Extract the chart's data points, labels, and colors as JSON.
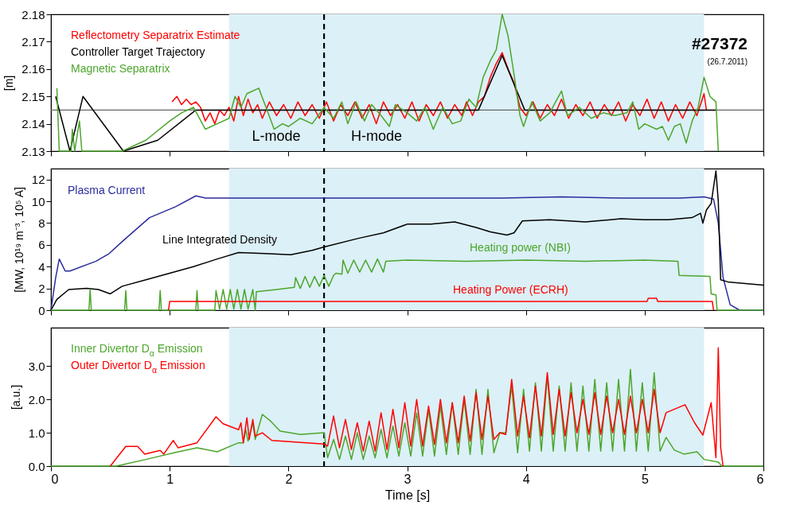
{
  "chart_data": [
    {
      "type": "line",
      "ylabel": "[m]",
      "xlim": [
        0,
        6
      ],
      "xticks": [
        0,
        1,
        2,
        3,
        4,
        5,
        6
      ],
      "ylim": [
        2.13,
        2.18
      ],
      "yticks": [
        2.13,
        2.14,
        2.15,
        2.16,
        2.17,
        2.18
      ],
      "tick_labels": "y",
      "legend": "top left",
      "annotations": [
        "#27372",
        "(26.7.2011)",
        "L-mode",
        "H-mode"
      ],
      "bands": [
        {
          "axis": "x",
          "from": 1.5,
          "to": 5.5,
          "color": "#dcf0f7"
        }
      ],
      "ref_lines": [
        {
          "axis": "y",
          "value": 2.145,
          "color": "#666666"
        },
        {
          "axis": "x",
          "value": 2.3,
          "color": "#000000",
          "line_style": "dashed"
        }
      ],
      "series": [
        {
          "name": "Reflectometry Separatrix Estimate",
          "color": "#ff0000",
          "x": [
            1.02,
            1.06,
            1.1,
            1.14,
            1.18,
            1.22,
            1.26,
            1.3,
            1.34,
            1.38,
            1.42,
            1.46,
            1.5,
            1.54,
            1.58,
            1.62,
            1.66,
            1.7,
            1.74,
            1.78,
            1.84,
            1.9,
            1.96,
            2.02,
            2.08,
            2.14,
            2.2,
            2.26,
            2.32,
            2.38,
            2.44,
            2.5,
            2.56,
            2.62,
            2.68,
            2.74,
            2.8,
            2.86,
            2.92,
            2.98,
            3.04,
            3.1,
            3.16,
            3.22,
            3.28,
            3.34,
            3.4,
            3.46,
            3.5,
            3.55,
            3.6,
            3.65,
            3.7,
            3.75,
            3.8,
            3.85,
            3.9,
            3.95,
            4.0,
            4.06,
            4.12,
            4.18,
            4.24,
            4.3,
            4.36,
            4.42,
            4.48,
            4.54,
            4.6,
            4.66,
            4.72,
            4.78,
            4.84,
            4.9,
            4.96,
            5.02,
            5.08,
            5.14,
            5.2,
            5.26,
            5.32,
            5.38,
            5.44,
            5.5,
            5.52
          ],
          "values": [
            2.148,
            2.15,
            2.147,
            2.149,
            2.147,
            2.148,
            2.146,
            2.141,
            2.144,
            2.14,
            2.145,
            2.143,
            2.146,
            2.141,
            2.15,
            2.143,
            2.149,
            2.144,
            2.147,
            2.142,
            2.148,
            2.143,
            2.147,
            2.142,
            2.148,
            2.143,
            2.147,
            2.142,
            2.148,
            2.141,
            2.147,
            2.143,
            2.148,
            2.142,
            2.147,
            2.14,
            2.148,
            2.143,
            2.147,
            2.142,
            2.148,
            2.141,
            2.147,
            2.143,
            2.148,
            2.142,
            2.147,
            2.143,
            2.148,
            2.143,
            2.148,
            2.15,
            2.157,
            2.162,
            2.166,
            2.16,
            2.155,
            2.146,
            2.143,
            2.148,
            2.142,
            2.147,
            2.143,
            2.149,
            2.142,
            2.147,
            2.143,
            2.148,
            2.142,
            2.147,
            2.143,
            2.148,
            2.141,
            2.147,
            2.143,
            2.149,
            2.142,
            2.148,
            2.141,
            2.147,
            2.142,
            2.148,
            2.143,
            2.151,
            2.145
          ]
        },
        {
          "name": "Controller Target Trajectory",
          "color": "#000000",
          "x": [
            0.04,
            0.16,
            0.27,
            0.61,
            0.9,
            1.22,
            3.6,
            3.8,
            3.99,
            5.6
          ],
          "values": [
            2.15,
            2.13,
            2.15,
            2.13,
            2.134,
            2.145,
            2.145,
            2.165,
            2.145,
            2.145
          ]
        },
        {
          "name": "Magnetic Separatrix",
          "color": "#4ca62c",
          "x": [
            0.05,
            0.07,
            0.17,
            0.18,
            0.2,
            0.24,
            0.26,
            0.6,
            0.8,
            1.0,
            1.1,
            1.2,
            1.25,
            1.3,
            1.4,
            1.5,
            1.55,
            1.6,
            1.65,
            1.75,
            1.82,
            1.88,
            1.95,
            2.0,
            2.1,
            2.2,
            2.3,
            2.38,
            2.45,
            2.5,
            2.57,
            2.64,
            2.7,
            2.78,
            2.85,
            2.9,
            3.0,
            3.08,
            3.15,
            3.22,
            3.3,
            3.38,
            3.45,
            3.52,
            3.58,
            3.64,
            3.7,
            3.75,
            3.8,
            3.85,
            3.9,
            3.95,
            3.98,
            4.05,
            4.12,
            4.2,
            4.3,
            4.35,
            4.45,
            4.55,
            4.65,
            4.75,
            4.85,
            4.9,
            4.95,
            5.0,
            5.1,
            5.15,
            5.2,
            5.25,
            5.3,
            5.35,
            5.4,
            5.45,
            5.5,
            5.55,
            5.6,
            5.62
          ],
          "values": [
            2.153,
            2.13,
            2.13,
            2.138,
            2.13,
            2.141,
            2.13,
            2.13,
            2.134,
            2.141,
            2.144,
            2.146,
            2.142,
            2.138,
            2.14,
            2.142,
            2.15,
            2.146,
            2.151,
            2.153,
            2.145,
            2.138,
            2.14,
            2.139,
            2.142,
            2.14,
            2.146,
            2.142,
            2.148,
            2.14,
            2.148,
            2.141,
            2.147,
            2.143,
            2.139,
            2.147,
            2.144,
            2.141,
            2.146,
            2.138,
            2.146,
            2.14,
            2.141,
            2.149,
            2.146,
            2.157,
            2.163,
            2.167,
            2.18,
            2.172,
            2.158,
            2.143,
            2.139,
            2.148,
            2.141,
            2.144,
            2.152,
            2.143,
            2.146,
            2.142,
            2.144,
            2.143,
            2.144,
            2.148,
            2.138,
            2.14,
            2.138,
            2.139,
            2.134,
            2.139,
            2.14,
            2.133,
            2.141,
            2.146,
            2.157,
            2.15,
            2.148,
            2.13
          ]
        }
      ]
    },
    {
      "type": "line",
      "ylabel": "[MW, 10¹⁹ m⁻³, 10⁵ A]",
      "xlim": [
        0,
        6
      ],
      "xticks": [
        0,
        1,
        2,
        3,
        4,
        5,
        6
      ],
      "ylim": [
        0,
        13
      ],
      "yticks": [
        0,
        2,
        4,
        6,
        8,
        10,
        12
      ],
      "tick_labels": "y",
      "bands": [
        {
          "axis": "x",
          "from": 1.5,
          "to": 5.5,
          "color": "#dcf0f7"
        }
      ],
      "ref_lines": [
        {
          "axis": "x",
          "value": 2.3,
          "color": "#000000",
          "line_style": "dashed"
        }
      ],
      "series": [
        {
          "name": "Plasma Current",
          "color": "#2b2b9e",
          "x": [
            0,
            0.04,
            0.07,
            0.12,
            0.16,
            0.38,
            0.49,
            0.61,
            0.83,
            1.05,
            1.22,
            1.3,
            1.8,
            2.3,
            2.8,
            3.3,
            3.8,
            4.3,
            4.8,
            5.3,
            5.5,
            5.58,
            5.62,
            5.66,
            5.72,
            5.8,
            6.0
          ],
          "values": [
            0,
            3.0,
            4.7,
            3.6,
            3.6,
            4.5,
            5.2,
            6.4,
            8.5,
            9.5,
            10.5,
            10.3,
            10.3,
            10.3,
            10.3,
            10.3,
            10.3,
            10.4,
            10.3,
            10.3,
            10.4,
            10.2,
            8,
            3,
            0.5,
            0,
            0
          ]
        },
        {
          "name": "Line Integrated Density",
          "color": "#000000",
          "x": [
            0,
            0.05,
            0.15,
            0.3,
            0.4,
            0.5,
            0.6,
            0.8,
            1.0,
            1.2,
            1.4,
            1.58,
            1.8,
            2.02,
            2.2,
            2.3,
            2.59,
            2.8,
            3.0,
            3.2,
            3.4,
            3.58,
            3.7,
            3.84,
            3.9,
            3.97,
            4.2,
            4.5,
            4.8,
            5.0,
            5.2,
            5.4,
            5.47,
            5.49,
            5.52,
            5.56,
            5.6,
            5.62,
            5.64,
            5.7,
            6.0
          ],
          "values": [
            0,
            1.0,
            1.9,
            2.0,
            1.9,
            1.5,
            2.2,
            2.8,
            3.4,
            4.0,
            4.7,
            5.3,
            5.2,
            5.1,
            5.5,
            5.8,
            6.6,
            7.1,
            7.9,
            7.9,
            8.1,
            7.6,
            7.2,
            6.9,
            7.1,
            8.2,
            8.3,
            8.1,
            8.4,
            8.3,
            8.3,
            8.5,
            8.9,
            8.0,
            9.2,
            9.8,
            12.8,
            10,
            2.8,
            2.6,
            2.3
          ]
        },
        {
          "name": "Heating power (NBI)",
          "color": "#4ca62c",
          "x": [
            0,
            0.32,
            0.33,
            0.34,
            0.62,
            0.63,
            0.64,
            0.91,
            0.92,
            0.93,
            1.22,
            1.23,
            1.24,
            1.38,
            1.39,
            1.42,
            1.45,
            1.48,
            1.51,
            1.54,
            1.57,
            1.6,
            1.63,
            1.66,
            1.7,
            1.72,
            1.73,
            1.9,
            2.05,
            2.06,
            2.1,
            2.14,
            2.18,
            2.22,
            2.26,
            2.3,
            2.34,
            2.38,
            2.4,
            2.45,
            2.46,
            2.5,
            2.55,
            2.6,
            2.65,
            2.7,
            2.75,
            2.8,
            2.82,
            3.0,
            3.5,
            4.0,
            4.5,
            5.0,
            5.28,
            5.29,
            5.55,
            5.56,
            5.6,
            5.61,
            6.0
          ],
          "values": [
            0,
            0,
            1.9,
            0,
            0,
            1.8,
            0,
            0,
            1.8,
            0,
            0,
            1.8,
            0,
            0,
            1.8,
            0.1,
            1.9,
            0.1,
            1.9,
            0.1,
            1.9,
            0.1,
            1.9,
            0.1,
            1.9,
            0,
            1.7,
            1.9,
            2.1,
            3.0,
            2.0,
            3.1,
            2.1,
            3.1,
            2.2,
            3.2,
            2.2,
            3.2,
            3.4,
            3.3,
            4.6,
            3.4,
            4.6,
            3.5,
            4.6,
            3.5,
            4.7,
            3.5,
            4.5,
            4.6,
            4.5,
            4.6,
            4.5,
            4.6,
            4.5,
            3.2,
            3.1,
            1.5,
            1.4,
            0,
            0
          ]
        },
        {
          "name": "Heating Power (ECRH)",
          "color": "#ff0000",
          "x": [
            0.99,
            1.0,
            5.02,
            5.03,
            5.1,
            5.11,
            5.57,
            5.58
          ],
          "values": [
            0,
            0.8,
            0.8,
            1.1,
            1.1,
            0.8,
            0.8,
            0
          ]
        }
      ]
    },
    {
      "type": "line",
      "ylabel": "[a.u.]",
      "xlabel": "Time [s]",
      "xlim": [
        0,
        6
      ],
      "xticks": [
        0,
        1,
        2,
        3,
        4,
        5,
        6
      ],
      "ylim": [
        0,
        4.15
      ],
      "yticks": [
        {
          "value": 0,
          "label": "0.0"
        },
        {
          "value": 1,
          "label": "1.0"
        },
        {
          "value": 2,
          "label": "2.0"
        },
        {
          "value": 3,
          "label": "3.0"
        }
      ],
      "legend": "top left",
      "bands": [
        {
          "axis": "x",
          "from": 1.5,
          "to": 5.5,
          "color": "#dcf0f7"
        }
      ],
      "ref_lines": [
        {
          "axis": "x",
          "value": 2.3,
          "color": "#000000",
          "line_style": "dashed"
        }
      ],
      "series": [
        {
          "name": "Inner Divertor D$_{α}$ Emission",
          "color": "#4ca62c",
          "x": [
            0,
            0.55,
            0.61,
            0.8,
            1.05,
            1.23,
            1.4,
            1.58,
            1.62,
            1.64,
            1.66,
            1.7,
            1.72,
            1.78,
            1.85,
            1.93,
            2.1,
            2.3,
            2.33,
            2.38,
            2.43,
            2.48,
            2.53,
            2.58,
            2.63,
            2.68,
            2.73,
            2.78,
            2.83,
            2.88,
            2.93,
            2.98,
            3.03,
            3.08,
            3.13,
            3.18,
            3.23,
            3.28,
            3.33,
            3.38,
            3.43,
            3.48,
            3.53,
            3.58,
            3.63,
            3.68,
            3.73,
            3.78,
            3.83,
            3.88,
            3.93,
            3.98,
            4.03,
            4.08,
            4.13,
            4.18,
            4.23,
            4.28,
            4.33,
            4.38,
            4.43,
            4.48,
            4.53,
            4.58,
            4.63,
            4.68,
            4.73,
            4.78,
            4.83,
            4.88,
            4.93,
            4.98,
            5.03,
            5.08,
            5.13,
            5.18,
            5.25,
            5.33,
            5.44,
            5.5,
            5.62,
            5.65,
            6.0
          ],
          "values": [
            0,
            0,
            0.05,
            0.2,
            0.41,
            0.55,
            0.43,
            0.7,
            0.7,
            1.1,
            0.75,
            1.3,
            0.8,
            1.55,
            1.35,
            1.05,
            0.95,
            1.0,
            0.25,
            0.8,
            0.2,
            0.9,
            0.2,
            1.0,
            0.2,
            0.9,
            0.25,
            1.1,
            0.25,
            1.2,
            0.3,
            1.3,
            0.3,
            1.6,
            0.3,
            1.7,
            0.3,
            1.8,
            0.35,
            1.9,
            0.35,
            2.0,
            0.35,
            2.3,
            0.35,
            2.3,
            0.4,
            1.0,
            1.0,
            2.4,
            0.4,
            2.3,
            0.45,
            2.5,
            0.45,
            2.7,
            0.45,
            2.4,
            0.45,
            2.5,
            0.45,
            2.4,
            0.45,
            2.6,
            0.45,
            2.5,
            0.45,
            2.6,
            0.45,
            2.9,
            0.45,
            2.5,
            0.45,
            2.8,
            0.45,
            0.86,
            0.48,
            0.36,
            0.43,
            0.2,
            0.12,
            0,
            0
          ]
        },
        {
          "name": "Outer Divertor D$_{α}$ Emission",
          "color": "#ff0000",
          "x": [
            0.5,
            0.63,
            0.73,
            0.79,
            0.92,
            0.95,
            1.03,
            1.07,
            1.23,
            1.39,
            1.45,
            1.58,
            1.6,
            1.62,
            1.65,
            1.67,
            1.7,
            1.72,
            1.78,
            1.86,
            2.3,
            2.33,
            2.38,
            2.43,
            2.48,
            2.53,
            2.58,
            2.63,
            2.68,
            2.73,
            2.78,
            2.83,
            2.88,
            2.93,
            2.98,
            3.03,
            3.08,
            3.13,
            3.18,
            3.23,
            3.28,
            3.33,
            3.38,
            3.43,
            3.48,
            3.53,
            3.58,
            3.63,
            3.68,
            3.73,
            3.78,
            3.83,
            3.88,
            3.93,
            3.98,
            4.03,
            4.08,
            4.13,
            4.18,
            4.23,
            4.28,
            4.33,
            4.38,
            4.43,
            4.48,
            4.53,
            4.58,
            4.63,
            4.68,
            4.73,
            4.78,
            4.83,
            4.88,
            4.93,
            4.98,
            5.03,
            5.08,
            5.13,
            5.18,
            5.34,
            5.42,
            5.49,
            5.56,
            5.6,
            5.62,
            5.64,
            5.66
          ],
          "values": [
            0,
            0.59,
            0.59,
            0.36,
            0.47,
            0.36,
            0.77,
            0.55,
            0.7,
            1.48,
            1.27,
            1.09,
            1.3,
            0.7,
            1.45,
            0.8,
            1.4,
            0.9,
            1.0,
            0.77,
            0.66,
            0.6,
            1.5,
            0.55,
            1.4,
            0.5,
            1.3,
            0.45,
            1.35,
            0.45,
            1.6,
            0.5,
            1.7,
            0.55,
            1.9,
            0.6,
            2.0,
            0.6,
            1.8,
            0.65,
            2.0,
            0.7,
            1.9,
            0.7,
            2.1,
            0.75,
            2.2,
            0.8,
            2.1,
            0.8,
            1.0,
            0.95,
            2.6,
            0.9,
            2.1,
            0.85,
            2.4,
            0.9,
            2.8,
            0.95,
            2.3,
            0.9,
            2.2,
            1.0,
            2.0,
            0.95,
            2.2,
            0.95,
            2.1,
            1.0,
            2.0,
            0.95,
            2.1,
            1.0,
            2.0,
            1.0,
            2.3,
            1.0,
            1.6,
            1.84,
            1.3,
            0.93,
            1.9,
            0.25,
            3.55,
            0.55,
            0
          ]
        }
      ]
    }
  ]
}
